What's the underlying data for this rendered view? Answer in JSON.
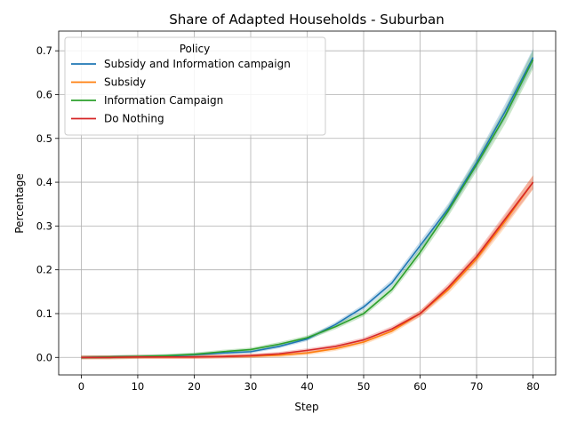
{
  "chart_data": {
    "type": "line",
    "title": "Share of Adapted Households - Suburban",
    "xlabel": "Step",
    "ylabel": "Percentage",
    "xlim": [
      -4,
      84
    ],
    "ylim": [
      -0.04,
      0.745
    ],
    "x_ticks": [
      0,
      10,
      20,
      30,
      40,
      50,
      60,
      70,
      80
    ],
    "y_ticks": [
      0.0,
      0.1,
      0.2,
      0.3,
      0.4,
      0.5,
      0.6,
      0.7
    ],
    "x_tick_labels": [
      "0",
      "10",
      "20",
      "30",
      "40",
      "50",
      "60",
      "70",
      "80"
    ],
    "y_tick_labels": [
      "0.0",
      "0.1",
      "0.2",
      "0.3",
      "0.4",
      "0.5",
      "0.6",
      "0.7"
    ],
    "grid": true,
    "legend": {
      "title": "Policy",
      "placement": "top-left"
    },
    "x": [
      0,
      5,
      10,
      15,
      20,
      25,
      30,
      35,
      40,
      45,
      50,
      55,
      60,
      65,
      70,
      75,
      80
    ],
    "series": [
      {
        "name": "Subsidy and Information campaign",
        "color": "#1f77b4",
        "values": [
          0.0,
          0.001,
          0.002,
          0.003,
          0.006,
          0.01,
          0.013,
          0.025,
          0.042,
          0.075,
          0.115,
          0.17,
          0.255,
          0.34,
          0.445,
          0.56,
          0.685
        ],
        "band": 0.012
      },
      {
        "name": "Subsidy",
        "color": "#ff7f0e",
        "values": [
          0.0,
          0.0,
          0.001,
          0.001,
          0.001,
          0.002,
          0.003,
          0.005,
          0.01,
          0.02,
          0.035,
          0.06,
          0.1,
          0.155,
          0.225,
          0.31,
          0.4
        ],
        "band": 0.015
      },
      {
        "name": "Information Campaign",
        "color": "#2ca02c",
        "values": [
          0.0,
          0.001,
          0.002,
          0.004,
          0.007,
          0.013,
          0.018,
          0.03,
          0.045,
          0.07,
          0.1,
          0.155,
          0.24,
          0.335,
          0.44,
          0.55,
          0.68
        ],
        "band": 0.013
      },
      {
        "name": "Do Nothing",
        "color": "#d62728",
        "values": [
          0.0,
          0.0,
          0.001,
          0.001,
          0.001,
          0.002,
          0.004,
          0.008,
          0.016,
          0.025,
          0.04,
          0.065,
          0.1,
          0.16,
          0.23,
          0.315,
          0.4
        ],
        "band": 0.014
      }
    ]
  }
}
